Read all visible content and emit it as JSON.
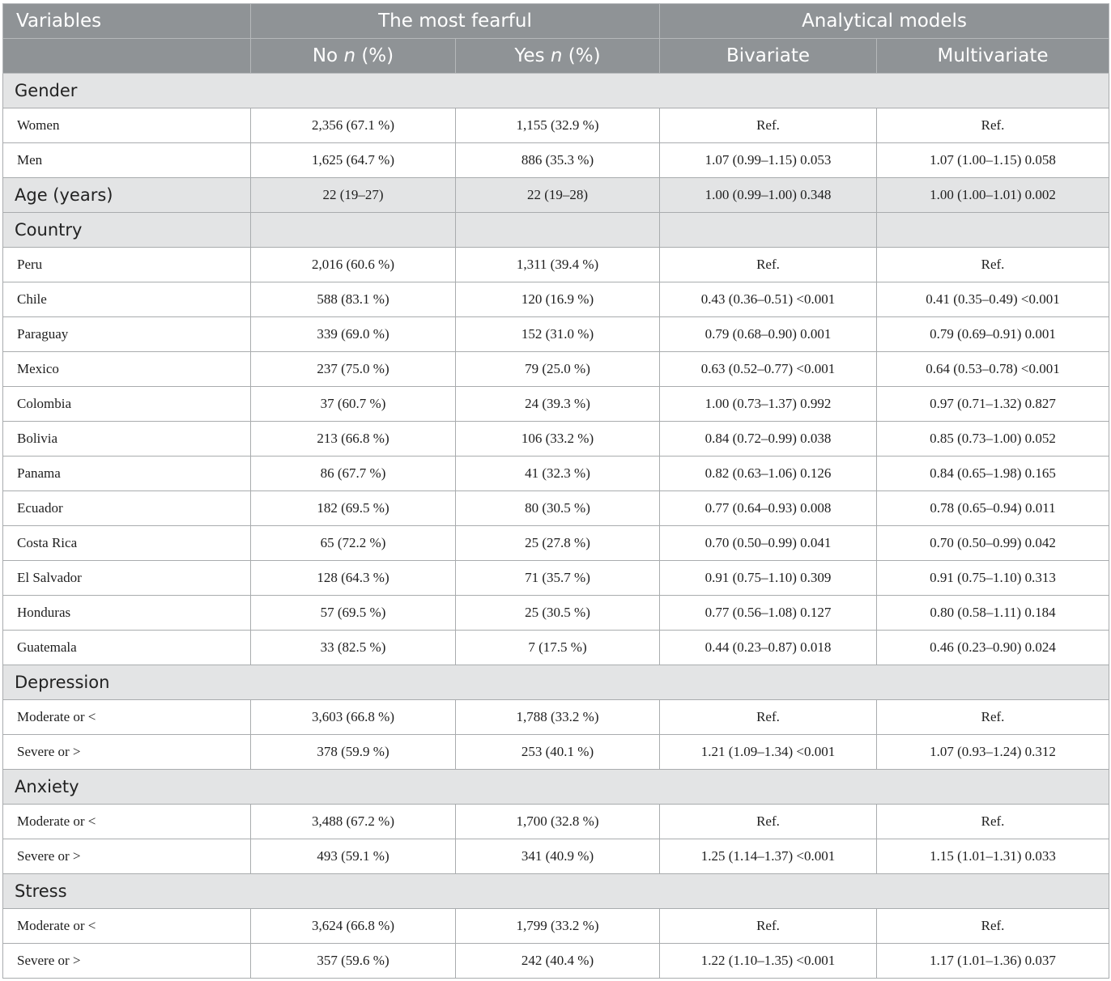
{
  "header": {
    "variables": "Variables",
    "fearful": "The most fearful",
    "models": "Analytical models",
    "no_label": "No",
    "yes_label": "Yes",
    "n_label": "n",
    "pct_label": "(%)",
    "bivariate": "Bivariate",
    "multivariate": "Multivariate"
  },
  "sections": {
    "gender": "Gender",
    "age": "Age (years)",
    "country": "Country",
    "depression": "Depression",
    "anxiety": "Anxiety",
    "stress": "Stress"
  },
  "age_row": {
    "no": "22 (19–27)",
    "yes": "22 (19–28)",
    "bivariate": "1.00 (0.99–1.00) 0.348",
    "multivariate": "1.00 (1.00–1.01) 0.002"
  },
  "gender_rows": [
    {
      "label": "Women",
      "no": "2,356 (67.1 %)",
      "yes": "1,155 (32.9 %)",
      "bivariate": "Ref.",
      "multivariate": "Ref."
    },
    {
      "label": "Men",
      "no": "1,625 (64.7 %)",
      "yes": "886 (35.3 %)",
      "bivariate": "1.07 (0.99–1.15) 0.053",
      "multivariate": "1.07 (1.00–1.15) 0.058"
    }
  ],
  "country_rows": [
    {
      "label": "Peru",
      "no": "2,016 (60.6 %)",
      "yes": "1,311 (39.4 %)",
      "bivariate": "Ref.",
      "multivariate": "Ref."
    },
    {
      "label": "Chile",
      "no": "588 (83.1 %)",
      "yes": "120 (16.9 %)",
      "bivariate": "0.43 (0.36–0.51) <0.001",
      "multivariate": "0.41 (0.35–0.49) <0.001"
    },
    {
      "label": "Paraguay",
      "no": "339 (69.0 %)",
      "yes": "152 (31.0 %)",
      "bivariate": "0.79 (0.68–0.90) 0.001",
      "multivariate": "0.79 (0.69–0.91) 0.001"
    },
    {
      "label": "Mexico",
      "no": "237 (75.0 %)",
      "yes": "79 (25.0 %)",
      "bivariate": "0.63 (0.52–0.77) <0.001",
      "multivariate": "0.64 (0.53–0.78) <0.001"
    },
    {
      "label": "Colombia",
      "no": "37 (60.7 %)",
      "yes": "24 (39.3 %)",
      "bivariate": "1.00 (0.73–1.37) 0.992",
      "multivariate": "0.97 (0.71–1.32) 0.827"
    },
    {
      "label": "Bolivia",
      "no": "213 (66.8 %)",
      "yes": "106 (33.2 %)",
      "bivariate": "0.84 (0.72–0.99) 0.038",
      "multivariate": "0.85 (0.73–1.00) 0.052"
    },
    {
      "label": "Panama",
      "no": "86 (67.7 %)",
      "yes": "41 (32.3 %)",
      "bivariate": "0.82 (0.63–1.06) 0.126",
      "multivariate": "0.84 (0.65–1.98) 0.165"
    },
    {
      "label": "Ecuador",
      "no": "182 (69.5 %)",
      "yes": "80 (30.5 %)",
      "bivariate": "0.77 (0.64–0.93) 0.008",
      "multivariate": "0.78 (0.65–0.94) 0.011"
    },
    {
      "label": "Costa Rica",
      "no": "65 (72.2 %)",
      "yes": "25 (27.8 %)",
      "bivariate": "0.70 (0.50–0.99) 0.041",
      "multivariate": "0.70 (0.50–0.99) 0.042"
    },
    {
      "label": "El Salvador",
      "no": "128 (64.3 %)",
      "yes": "71 (35.7 %)",
      "bivariate": "0.91 (0.75–1.10) 0.309",
      "multivariate": "0.91 (0.75–1.10) 0.313"
    },
    {
      "label": "Honduras",
      "no": "57 (69.5 %)",
      "yes": "25 (30.5 %)",
      "bivariate": "0.77 (0.56–1.08) 0.127",
      "multivariate": "0.80 (0.58–1.11) 0.184"
    },
    {
      "label": "Guatemala",
      "no": "33 (82.5 %)",
      "yes": "7 (17.5 %)",
      "bivariate": "0.44 (0.23–0.87) 0.018",
      "multivariate": "0.46 (0.23–0.90) 0.024"
    }
  ],
  "depression_rows": [
    {
      "label": "Moderate or <",
      "no": "3,603 (66.8 %)",
      "yes": "1,788 (33.2 %)",
      "bivariate": "Ref.",
      "multivariate": "Ref."
    },
    {
      "label": "Severe or >",
      "no": "378 (59.9 %)",
      "yes": "253 (40.1 %)",
      "bivariate": "1.21 (1.09–1.34) <0.001",
      "multivariate": "1.07 (0.93–1.24) 0.312"
    }
  ],
  "anxiety_rows": [
    {
      "label": "Moderate or <",
      "no": "3,488 (67.2 %)",
      "yes": "1,700 (32.8 %)",
      "bivariate": "Ref.",
      "multivariate": "Ref."
    },
    {
      "label": "Severe or >",
      "no": "493 (59.1 %)",
      "yes": "341 (40.9 %)",
      "bivariate": "1.25 (1.14–1.37) <0.001",
      "multivariate": "1.15 (1.01–1.31) 0.033"
    }
  ],
  "stress_rows": [
    {
      "label": "Moderate or <",
      "no": "3,624 (66.8 %)",
      "yes": "1,799 (33.2 %)",
      "bivariate": "Ref.",
      "multivariate": "Ref."
    },
    {
      "label": "Severe or >",
      "no": "357 (59.6 %)",
      "yes": "242 (40.4 %)",
      "bivariate": "1.22 (1.10–1.35) <0.001",
      "multivariate": "1.17 (1.01–1.36) 0.037"
    }
  ]
}
